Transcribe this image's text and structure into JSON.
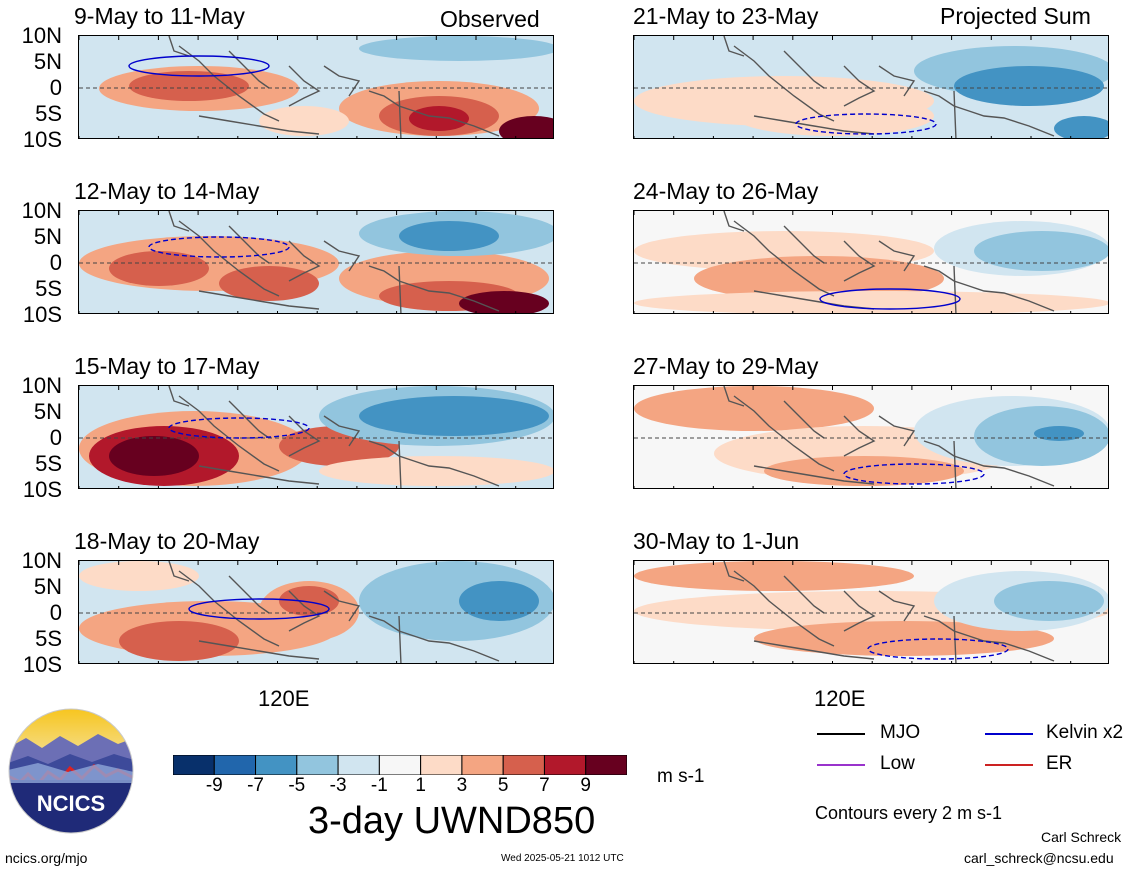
{
  "tags": {
    "left": "Observed",
    "right": "Projected Sum"
  },
  "lat_labels": [
    "10N",
    "5N",
    "0",
    "5S",
    "10S"
  ],
  "lon_label": "120E",
  "panels": [
    {
      "title": "9-May to 11-May"
    },
    {
      "title": "21-May to 23-May"
    },
    {
      "title": "12-May to 14-May"
    },
    {
      "title": "24-May to 26-May"
    },
    {
      "title": "15-May to 17-May"
    },
    {
      "title": "27-May to 29-May"
    },
    {
      "title": "18-May to 20-May"
    },
    {
      "title": "30-May to 1-Jun"
    }
  ],
  "colorbar": {
    "ticks": [
      "-9",
      "-7",
      "-5",
      "-3",
      "-1",
      "1",
      "3",
      "5",
      "7",
      "9"
    ],
    "colors": [
      "#08306b",
      "#2166ac",
      "#4393c3",
      "#92c5de",
      "#d1e5f0",
      "#f7f7f7",
      "#fddbc7",
      "#f4a582",
      "#d6604d",
      "#b2182b",
      "#67001f"
    ],
    "units": "m s-1",
    "title": "3-day UWND850"
  },
  "legend": {
    "items": [
      {
        "label": "MJO",
        "color": "#000000"
      },
      {
        "label": "Kelvin x2",
        "color": "#0000cc"
      },
      {
        "label": "Low",
        "color": "#9933cc"
      },
      {
        "label": "ER",
        "color": "#cc2222"
      }
    ],
    "note": "Contours every 2 m s-1"
  },
  "footer": {
    "site": "ncics.org/mjo",
    "timestamp": "Wed 2025-05-21 1012 UTC",
    "author": "Carl Schreck",
    "email": "carl_schreck@ncsu.edu"
  },
  "logo": {
    "text": "NCICS"
  }
}
